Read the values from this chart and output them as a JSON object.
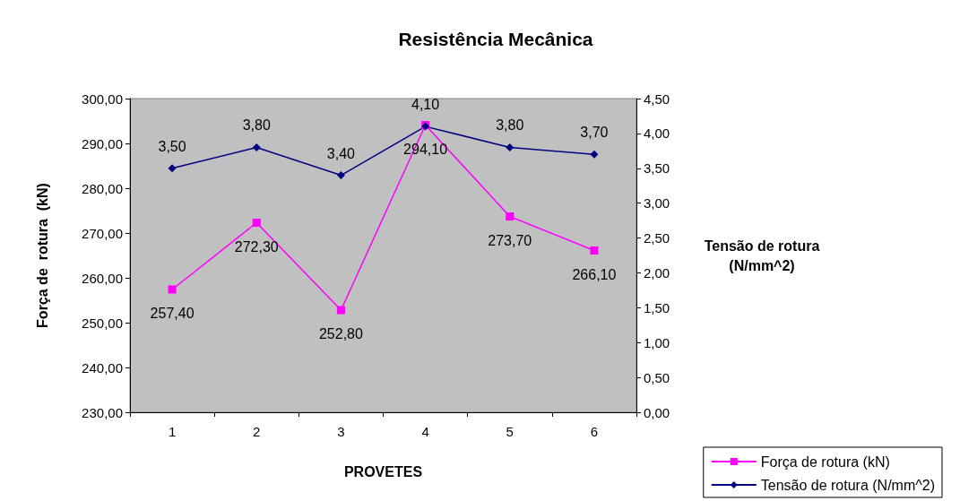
{
  "chart_data": {
    "type": "line",
    "title": "Resistência Mecânica",
    "xlabel": "PROVETES",
    "ylabel": "Força de  rotura  (kN)",
    "y2label": "Tensão de rotura (N/mm^2)",
    "categories": [
      "1",
      "2",
      "3",
      "4",
      "5",
      "6"
    ],
    "series": [
      {
        "name": "Força de rotura (kN)",
        "color": "#ff00ff",
        "marker": "square",
        "values": [
          257.4,
          272.3,
          252.8,
          294.1,
          273.7,
          266.1
        ],
        "value_labels": [
          "257,40",
          "272,30",
          "252,80",
          "294,10",
          "273,70",
          "266,10"
        ]
      },
      {
        "name": "Tensão de rotura (N/mm^2)",
        "color": "#000080",
        "marker": "diamond",
        "axis": "y2",
        "values": [
          3.5,
          3.8,
          3.4,
          4.1,
          3.8,
          3.7
        ],
        "value_labels": [
          "3,50",
          "3,80",
          "3,40",
          "4,10",
          "3,80",
          "3,70"
        ]
      }
    ],
    "ylim": [
      230,
      300
    ],
    "yticks": [
      {
        "value": 230,
        "label": "230,00"
      },
      {
        "value": 240,
        "label": "240,00"
      },
      {
        "value": 250,
        "label": "250,00"
      },
      {
        "value": 260,
        "label": "260,00"
      },
      {
        "value": 270,
        "label": "270,00"
      },
      {
        "value": 280,
        "label": "280,00"
      },
      {
        "value": 290,
        "label": "290,00"
      },
      {
        "value": 300,
        "label": "300,00"
      }
    ],
    "y2lim": [
      0,
      4.5
    ],
    "y2ticks": [
      {
        "value": 0,
        "label": "0,00"
      },
      {
        "value": 0.5,
        "label": "0,50"
      },
      {
        "value": 1,
        "label": "1,00"
      },
      {
        "value": 1.5,
        "label": "1,50"
      },
      {
        "value": 2,
        "label": "2,00"
      },
      {
        "value": 2.5,
        "label": "2,50"
      },
      {
        "value": 3,
        "label": "3,00"
      },
      {
        "value": 3.5,
        "label": "3,50"
      },
      {
        "value": 4,
        "label": "4,00"
      },
      {
        "value": 4.5,
        "label": "4,50"
      }
    ],
    "grid": false,
    "legend": "bottom right"
  }
}
